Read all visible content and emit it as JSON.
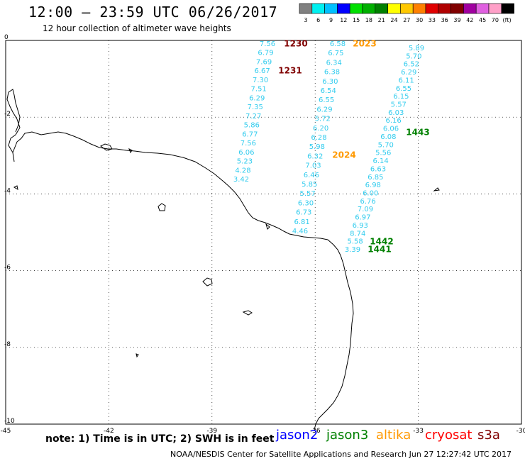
{
  "header": {
    "title": "12:00 – 23:59 UTC 06/26/2017",
    "subtitle": "12 hour collection of altimeter wave heights"
  },
  "colorbar": {
    "unit": "(ft)",
    "bins": [
      {
        "label": "3",
        "color": "#808080"
      },
      {
        "label": "6",
        "color": "#00f0f0"
      },
      {
        "label": "9",
        "color": "#00c0ff"
      },
      {
        "label": "12",
        "color": "#0000ff"
      },
      {
        "label": "15",
        "color": "#00e000"
      },
      {
        "label": "18",
        "color": "#00b000"
      },
      {
        "label": "21",
        "color": "#008000"
      },
      {
        "label": "24",
        "color": "#ffff00"
      },
      {
        "label": "27",
        "color": "#ffc800"
      },
      {
        "label": "30",
        "color": "#ff8000"
      },
      {
        "label": "33",
        "color": "#e00000"
      },
      {
        "label": "36",
        "color": "#b00000"
      },
      {
        "label": "39",
        "color": "#800000"
      },
      {
        "label": "42",
        "color": "#a000a0"
      },
      {
        "label": "45",
        "color": "#e060e0"
      },
      {
        "label": "70",
        "color": "#ffa0c8"
      },
      {
        "label": "",
        "color": "#000000"
      }
    ]
  },
  "map": {
    "lon_ticks": [
      "-45",
      "-42",
      "-39",
      "-36",
      "-33",
      "-30"
    ],
    "lat_ticks": [
      "0",
      "-2",
      "-4",
      "-6",
      "-8",
      "-10"
    ],
    "swh_color": "#33ccee",
    "tracks": [
      {
        "id": "track-1230-1231",
        "values": [
          "7.56",
          "6.79",
          "7.69",
          "6.67",
          "7.30",
          "7.51",
          "6.29",
          "7.35",
          "7.27",
          "5.86",
          "6.77",
          "7.56",
          "6.06",
          "5.23",
          "4.28",
          "3.42"
        ],
        "times": [
          {
            "label": "1230",
            "color": "#800000"
          },
          {
            "label": "1231",
            "color": "#800000"
          }
        ]
      },
      {
        "id": "track-2023-2024",
        "values": [
          "6.58",
          "6.75",
          "6.34",
          "6.38",
          "6.30",
          "6.54",
          "6.55",
          "6.29",
          "5.72",
          "6.20",
          "6.28",
          "5.98",
          "6.32",
          "7.03",
          "6.46",
          "5.85",
          "5.57",
          "6.30",
          "6.73",
          "6.81",
          "4.46"
        ],
        "times": [
          {
            "label": "2023",
            "color": "#ff9900"
          },
          {
            "label": "2024",
            "color": "#ff9900"
          }
        ]
      },
      {
        "id": "track-1441-1443",
        "values": [
          "5.89",
          "5.70",
          "6.52",
          "6.29",
          "6.11",
          "6.55",
          "6.15",
          "5.57",
          "6.03",
          "6.16",
          "6.06",
          "6.08",
          "5.70",
          "5.56",
          "6.14",
          "6.63",
          "6.85",
          "6.98",
          "6.00",
          "6.76",
          "7.09",
          "6.97",
          "6.93",
          "8.74",
          "5.58",
          "3.39"
        ],
        "times": [
          {
            "label": "1443",
            "color": "#008000"
          },
          {
            "label": "1442",
            "color": "#008000"
          },
          {
            "label": "1441",
            "color": "#008000"
          }
        ]
      }
    ]
  },
  "footer": {
    "note": "note: 1) Time is in UTC; 2) SWH is in feet",
    "credit": "NOAA/NESDIS Center for Satellite Applications and Research   Jun 27 12:27:42 UTC 2017",
    "satellites": [
      {
        "name": "jason2",
        "color": "#0000ff"
      },
      {
        "name": "jason3",
        "color": "#008000"
      },
      {
        "name": "altika",
        "color": "#ff9900"
      },
      {
        "name": "cryosat",
        "color": "#ff0000"
      },
      {
        "name": "s3a",
        "color": "#800000"
      }
    ]
  }
}
